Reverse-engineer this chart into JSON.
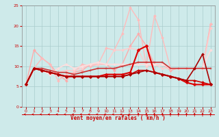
{
  "xlabel": "Vent moyen/en rafales ( km/h )",
  "xlim": [
    -0.5,
    23.5
  ],
  "ylim": [
    0,
    25
  ],
  "yticks": [
    0,
    5,
    10,
    15,
    20,
    25
  ],
  "xticks": [
    0,
    1,
    2,
    3,
    4,
    5,
    6,
    7,
    8,
    9,
    10,
    11,
    12,
    13,
    14,
    15,
    16,
    17,
    18,
    19,
    20,
    21,
    22,
    23
  ],
  "xticklabels": [
    "0",
    "1",
    "2",
    "3",
    "4",
    "5",
    "6",
    "7",
    "8",
    "9",
    "10",
    "11",
    "12",
    "13",
    "14",
    "15",
    "16",
    "17",
    "18",
    "19",
    "20",
    "21",
    "22",
    "23"
  ],
  "bg_color": "#ceeaea",
  "grid_color": "#aacccc",
  "lines": [
    {
      "x": [
        0,
        1,
        2,
        3,
        4,
        5,
        6,
        7,
        8,
        9,
        10,
        11,
        12,
        13,
        14,
        15,
        16,
        17,
        18,
        19,
        20,
        21,
        22,
        23
      ],
      "y": [
        5.5,
        14.0,
        12.0,
        10.5,
        8.0,
        6.5,
        8.5,
        9.0,
        10.5,
        10.5,
        10.5,
        9.0,
        10.5,
        15.0,
        18.0,
        15.0,
        10.5,
        10.5,
        9.0,
        9.5,
        9.5,
        9.5,
        9.5,
        20.5
      ],
      "color": "#ffaaaa",
      "lw": 1.0,
      "marker": "D",
      "ms": 2.0
    },
    {
      "x": [
        0,
        1,
        2,
        3,
        4,
        5,
        6,
        7,
        8,
        9,
        10,
        11,
        12,
        13,
        14,
        15,
        16,
        17,
        18,
        19,
        20,
        21,
        22,
        23
      ],
      "y": [
        5.5,
        9.5,
        12.0,
        10.5,
        6.5,
        8.0,
        8.5,
        10.5,
        10.0,
        10.5,
        14.5,
        14.0,
        18.0,
        24.5,
        21.5,
        10.0,
        22.5,
        17.0,
        9.5,
        9.5,
        9.5,
        9.5,
        9.5,
        20.5
      ],
      "color": "#ffbbbb",
      "lw": 1.0,
      "marker": "D",
      "ms": 2.0
    },
    {
      "x": [
        0,
        1,
        2,
        3,
        4,
        5,
        6,
        7,
        8,
        9,
        10,
        11,
        12,
        13,
        14,
        15,
        16,
        17,
        18,
        19,
        20,
        21,
        22,
        23
      ],
      "y": [
        5.5,
        9.5,
        9.0,
        8.0,
        8.5,
        9.0,
        9.0,
        9.5,
        10.5,
        10.5,
        10.5,
        14.0,
        14.0,
        14.5,
        14.0,
        10.0,
        10.5,
        9.5,
        9.5,
        9.5,
        9.5,
        9.5,
        9.5,
        19.5
      ],
      "color": "#ffcccc",
      "lw": 1.0,
      "marker": "D",
      "ms": 2.0
    },
    {
      "x": [
        0,
        1,
        2,
        3,
        4,
        5,
        6,
        7,
        8,
        9,
        10,
        11,
        12,
        13,
        14,
        15,
        16,
        17,
        18,
        19,
        20,
        21,
        22,
        23
      ],
      "y": [
        5.5,
        9.5,
        9.0,
        8.0,
        9.5,
        10.5,
        9.5,
        10.0,
        10.5,
        11.0,
        10.5,
        10.5,
        10.5,
        10.5,
        10.5,
        10.5,
        10.5,
        10.5,
        9.5,
        9.5,
        9.5,
        9.5,
        9.5,
        14.0
      ],
      "color": "#ffdddd",
      "lw": 1.2,
      "marker": "D",
      "ms": 2.0
    },
    {
      "x": [
        0,
        1,
        2,
        3,
        4,
        5,
        6,
        7,
        8,
        9,
        10,
        11,
        12,
        13,
        14,
        15,
        16,
        17,
        18,
        19,
        20,
        21,
        22,
        23
      ],
      "y": [
        5.5,
        9.5,
        9.5,
        9.0,
        8.5,
        8.5,
        8.0,
        8.5,
        9.0,
        9.5,
        9.5,
        9.5,
        10.0,
        10.5,
        11.0,
        11.0,
        11.0,
        11.0,
        9.5,
        9.5,
        9.5,
        9.5,
        9.5,
        9.5
      ],
      "color": "#cc3333",
      "lw": 1.2,
      "marker": "+",
      "ms": 3.5
    },
    {
      "x": [
        0,
        1,
        2,
        3,
        4,
        5,
        6,
        7,
        8,
        9,
        10,
        11,
        12,
        13,
        14,
        15,
        16,
        17,
        18,
        19,
        20,
        21,
        22,
        23
      ],
      "y": [
        5.5,
        9.5,
        9.0,
        8.5,
        8.0,
        7.5,
        7.5,
        7.5,
        7.5,
        7.5,
        7.5,
        7.5,
        7.5,
        8.0,
        9.0,
        9.0,
        8.5,
        8.0,
        7.5,
        7.0,
        6.5,
        6.5,
        6.0,
        5.5
      ],
      "color": "#cc0000",
      "lw": 1.2,
      "marker": "D",
      "ms": 2.0
    },
    {
      "x": [
        0,
        1,
        2,
        3,
        4,
        5,
        6,
        7,
        8,
        9,
        10,
        11,
        12,
        13,
        14,
        15,
        16,
        17,
        18,
        19,
        20,
        21,
        22,
        23
      ],
      "y": [
        5.5,
        9.5,
        9.0,
        8.5,
        8.0,
        7.5,
        7.5,
        7.5,
        7.5,
        7.5,
        8.0,
        8.0,
        8.0,
        8.5,
        14.0,
        15.0,
        8.5,
        8.0,
        7.5,
        7.0,
        6.0,
        5.5,
        5.5,
        5.5
      ],
      "color": "#dd0000",
      "lw": 1.5,
      "marker": "D",
      "ms": 2.5
    },
    {
      "x": [
        0,
        1,
        2,
        3,
        4,
        5,
        6,
        7,
        8,
        9,
        10,
        11,
        12,
        13,
        14,
        15,
        16,
        17,
        18,
        19,
        20,
        21,
        22,
        23
      ],
      "y": [
        5.5,
        9.5,
        9.0,
        8.5,
        8.0,
        7.5,
        7.5,
        7.5,
        7.5,
        7.5,
        7.5,
        7.5,
        7.5,
        8.0,
        8.5,
        9.0,
        8.5,
        8.0,
        7.5,
        7.0,
        6.5,
        9.5,
        13.0,
        5.5
      ],
      "color": "#aa0000",
      "lw": 1.2,
      "marker": "D",
      "ms": 2.0
    }
  ],
  "arrow_symbols_left": [
    0,
    1,
    2,
    3,
    4,
    5,
    6,
    7,
    8,
    9,
    10,
    11,
    12,
    13
  ],
  "arrow_symbols_up": [
    14,
    15,
    16,
    17,
    18,
    19,
    20,
    21,
    22,
    23
  ],
  "figsize": [
    3.2,
    2.0
  ],
  "dpi": 100
}
